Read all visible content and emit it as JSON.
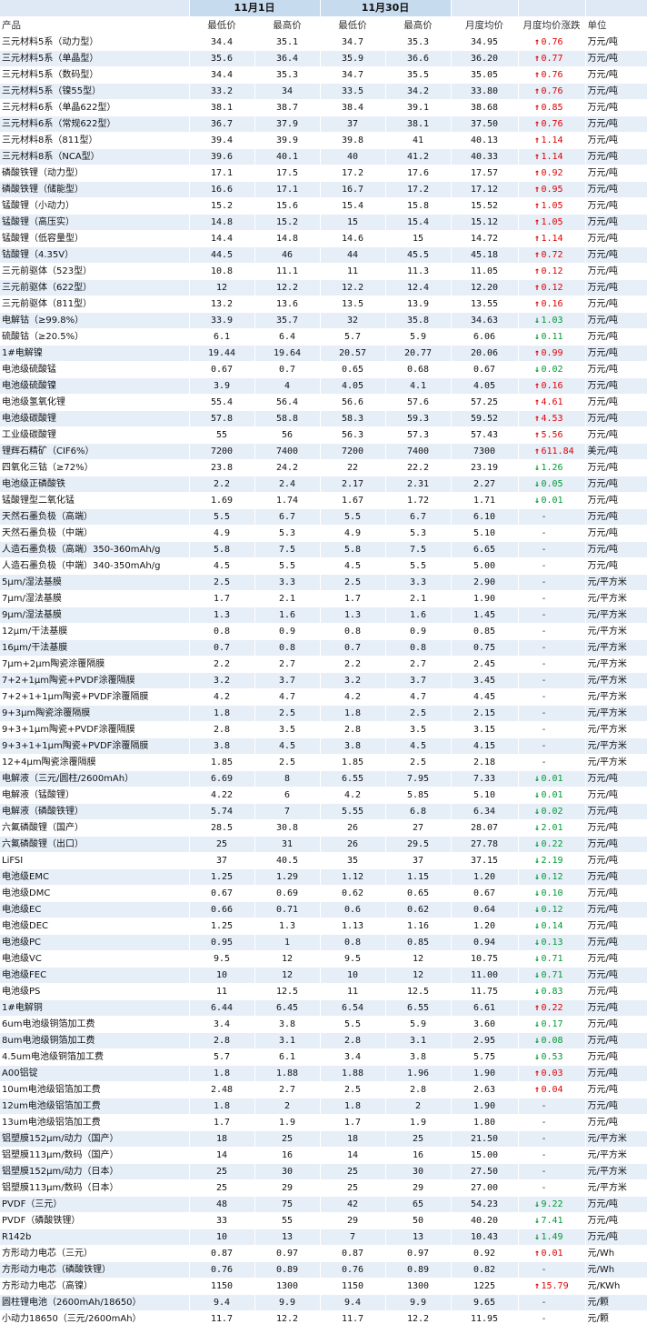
{
  "header": {
    "date1": "11月1日",
    "date2": "11月30日",
    "col_product": "产品",
    "col_low1": "最低价",
    "col_high1": "最高价",
    "col_low2": "最低价",
    "col_high2": "最高价",
    "col_avg": "月度均价",
    "col_change": "月度均价涨跌",
    "col_unit": "单位"
  },
  "colors": {
    "up": "#e00000",
    "down": "#009933",
    "band": "#e6eef8",
    "header": "#c7dbef"
  },
  "rows": [
    [
      "三元材料5系（动力型）",
      "34.4",
      "35.1",
      "34.7",
      "35.3",
      "34.95",
      "up",
      "0.76",
      "万元/吨"
    ],
    [
      "三元材料5系（单晶型）",
      "35.6",
      "36.4",
      "35.9",
      "36.6",
      "36.20",
      "up",
      "0.77",
      "万元/吨"
    ],
    [
      "三元材料5系（数码型）",
      "34.4",
      "35.3",
      "34.7",
      "35.5",
      "35.05",
      "up",
      "0.76",
      "万元/吨"
    ],
    [
      "三元材料5系（镍55型）",
      "33.2",
      "34",
      "33.5",
      "34.2",
      "33.80",
      "up",
      "0.76",
      "万元/吨"
    ],
    [
      "三元材料6系（单晶622型）",
      "38.1",
      "38.7",
      "38.4",
      "39.1",
      "38.68",
      "up",
      "0.85",
      "万元/吨"
    ],
    [
      "三元材料6系（常规622型）",
      "36.7",
      "37.9",
      "37",
      "38.1",
      "37.50",
      "up",
      "0.76",
      "万元/吨"
    ],
    [
      "三元材料8系（811型）",
      "39.4",
      "39.9",
      "39.8",
      "41",
      "40.13",
      "up",
      "1.14",
      "万元/吨"
    ],
    [
      "三元材料8系（NCA型）",
      "39.6",
      "40.1",
      "40",
      "41.2",
      "40.33",
      "up",
      "1.14",
      "万元/吨"
    ],
    [
      "磷酸铁锂（动力型）",
      "17.1",
      "17.5",
      "17.2",
      "17.6",
      "17.57",
      "up",
      "0.92",
      "万元/吨"
    ],
    [
      "磷酸铁锂（储能型）",
      "16.6",
      "17.1",
      "16.7",
      "17.2",
      "17.12",
      "up",
      "0.95",
      "万元/吨"
    ],
    [
      "锰酸锂（小动力）",
      "15.2",
      "15.6",
      "15.4",
      "15.8",
      "15.52",
      "up",
      "1.05",
      "万元/吨"
    ],
    [
      "锰酸锂（高压实）",
      "14.8",
      "15.2",
      "15",
      "15.4",
      "15.12",
      "up",
      "1.05",
      "万元/吨"
    ],
    [
      "锰酸锂（低容量型）",
      "14.4",
      "14.8",
      "14.6",
      "15",
      "14.72",
      "up",
      "1.14",
      "万元/吨"
    ],
    [
      "钴酸锂（4.35V）",
      "44.5",
      "46",
      "44",
      "45.5",
      "45.18",
      "up",
      "0.72",
      "万元/吨"
    ],
    [
      "三元前驱体（523型）",
      "10.8",
      "11.1",
      "11",
      "11.3",
      "11.05",
      "up",
      "0.12",
      "万元/吨"
    ],
    [
      "三元前驱体（622型）",
      "12",
      "12.2",
      "12.2",
      "12.4",
      "12.20",
      "up",
      "0.12",
      "万元/吨"
    ],
    [
      "三元前驱体（811型）",
      "13.2",
      "13.6",
      "13.5",
      "13.9",
      "13.55",
      "up",
      "0.16",
      "万元/吨"
    ],
    [
      "电解钴（≥99.8%）",
      "33.9",
      "35.7",
      "32",
      "35.8",
      "34.63",
      "down",
      "1.03",
      "万元/吨"
    ],
    [
      "硫酸钴（≥20.5%）",
      "6.1",
      "6.4",
      "5.7",
      "5.9",
      "6.06",
      "down",
      "0.11",
      "万元/吨"
    ],
    [
      "1#电解镍",
      "19.44",
      "19.64",
      "20.57",
      "20.77",
      "20.06",
      "up",
      "0.99",
      "万元/吨"
    ],
    [
      "电池级硫酸锰",
      "0.67",
      "0.7",
      "0.65",
      "0.68",
      "0.67",
      "down",
      "0.02",
      "万元/吨"
    ],
    [
      "电池级硫酸镍",
      "3.9",
      "4",
      "4.05",
      "4.1",
      "4.05",
      "up",
      "0.16",
      "万元/吨"
    ],
    [
      "电池级氢氧化锂",
      "55.4",
      "56.4",
      "56.6",
      "57.6",
      "57.25",
      "up",
      "4.61",
      "万元/吨"
    ],
    [
      "电池级碳酸锂",
      "57.8",
      "58.8",
      "58.3",
      "59.3",
      "59.52",
      "up",
      "4.53",
      "万元/吨"
    ],
    [
      "工业级碳酸锂",
      "55",
      "56",
      "56.3",
      "57.3",
      "57.43",
      "up",
      "5.56",
      "万元/吨"
    ],
    [
      "锂辉石精矿（CIF6%）",
      "7200",
      "7400",
      "7200",
      "7400",
      "7300",
      "up",
      "611.84",
      "美元/吨"
    ],
    [
      "四氧化三钴（≥72%）",
      "23.8",
      "24.2",
      "22",
      "22.2",
      "23.19",
      "down",
      "1.26",
      "万元/吨"
    ],
    [
      "电池级正磷酸铁",
      "2.2",
      "2.4",
      "2.17",
      "2.31",
      "2.27",
      "down",
      "0.05",
      "万元/吨"
    ],
    [
      "锰酸锂型二氧化锰",
      "1.69",
      "1.74",
      "1.67",
      "1.72",
      "1.71",
      "down",
      "0.01",
      "万元/吨"
    ],
    [
      "天然石墨负极（高端）",
      "5.5",
      "6.7",
      "5.5",
      "6.7",
      "6.10",
      "flat",
      "-",
      "万元/吨"
    ],
    [
      "天然石墨负极（中端）",
      "4.9",
      "5.3",
      "4.9",
      "5.3",
      "5.10",
      "flat",
      "-",
      "万元/吨"
    ],
    [
      "人造石墨负极（高端）350-360mAh/g",
      "5.8",
      "7.5",
      "5.8",
      "7.5",
      "6.65",
      "flat",
      "-",
      "万元/吨"
    ],
    [
      "人造石墨负极（中端）340-350mAh/g",
      "4.5",
      "5.5",
      "4.5",
      "5.5",
      "5.00",
      "flat",
      "-",
      "万元/吨"
    ],
    [
      "5μm/湿法基膜",
      "2.5",
      "3.3",
      "2.5",
      "3.3",
      "2.90",
      "flat",
      "-",
      "元/平方米"
    ],
    [
      "7μm/湿法基膜",
      "1.7",
      "2.1",
      "1.7",
      "2.1",
      "1.90",
      "flat",
      "-",
      "元/平方米"
    ],
    [
      "9μm/湿法基膜",
      "1.3",
      "1.6",
      "1.3",
      "1.6",
      "1.45",
      "flat",
      "-",
      "元/平方米"
    ],
    [
      "12μm/干法基膜",
      "0.8",
      "0.9",
      "0.8",
      "0.9",
      "0.85",
      "flat",
      "-",
      "元/平方米"
    ],
    [
      "16μm/干法基膜",
      "0.7",
      "0.8",
      "0.7",
      "0.8",
      "0.75",
      "flat",
      "-",
      "元/平方米"
    ],
    [
      "7μm+2μm陶瓷涂覆隔膜",
      "2.2",
      "2.7",
      "2.2",
      "2.7",
      "2.45",
      "flat",
      "-",
      "元/平方米"
    ],
    [
      "7+2+1μm陶瓷+PVDF涂覆隔膜",
      "3.2",
      "3.7",
      "3.2",
      "3.7",
      "3.45",
      "flat",
      "-",
      "元/平方米"
    ],
    [
      "7+2+1+1μm陶瓷+PVDF涂覆隔膜",
      "4.2",
      "4.7",
      "4.2",
      "4.7",
      "4.45",
      "flat",
      "-",
      "元/平方米"
    ],
    [
      "9+3μm陶瓷涂覆隔膜",
      "1.8",
      "2.5",
      "1.8",
      "2.5",
      "2.15",
      "flat",
      "-",
      "元/平方米"
    ],
    [
      "9+3+1μm陶瓷+PVDF涂覆隔膜",
      "2.8",
      "3.5",
      "2.8",
      "3.5",
      "3.15",
      "flat",
      "-",
      "元/平方米"
    ],
    [
      "9+3+1+1μm陶瓷+PVDF涂覆隔膜",
      "3.8",
      "4.5",
      "3.8",
      "4.5",
      "4.15",
      "flat",
      "-",
      "元/平方米"
    ],
    [
      "12+4μm陶瓷涂覆隔膜",
      "1.85",
      "2.5",
      "1.85",
      "2.5",
      "2.18",
      "flat",
      "-",
      "元/平方米"
    ],
    [
      "电解液（三元/圆柱/2600mAh）",
      "6.69",
      "8",
      "6.55",
      "7.95",
      "7.33",
      "down",
      "0.01",
      "万元/吨"
    ],
    [
      "电解液（锰酸锂）",
      "4.22",
      "6",
      "4.2",
      "5.85",
      "5.10",
      "down",
      "0.01",
      "万元/吨"
    ],
    [
      "电解液（磷酸铁锂）",
      "5.74",
      "7",
      "5.55",
      "6.8",
      "6.34",
      "down",
      "0.02",
      "万元/吨"
    ],
    [
      "六氟磷酸锂（国产）",
      "28.5",
      "30.8",
      "26",
      "27",
      "28.07",
      "down",
      "2.01",
      "万元/吨"
    ],
    [
      "六氟磷酸锂（出口）",
      "25",
      "31",
      "26",
      "29.5",
      "27.78",
      "down",
      "0.22",
      "万元/吨"
    ],
    [
      "LiFSI",
      "37",
      "40.5",
      "35",
      "37",
      "37.15",
      "down",
      "2.19",
      "万元/吨"
    ],
    [
      "电池级EMC",
      "1.25",
      "1.29",
      "1.12",
      "1.15",
      "1.20",
      "down",
      "0.12",
      "万元/吨"
    ],
    [
      "电池级DMC",
      "0.67",
      "0.69",
      "0.62",
      "0.65",
      "0.67",
      "down",
      "0.10",
      "万元/吨"
    ],
    [
      "电池级EC",
      "0.66",
      "0.71",
      "0.6",
      "0.62",
      "0.64",
      "down",
      "0.12",
      "万元/吨"
    ],
    [
      "电池级DEC",
      "1.25",
      "1.3",
      "1.13",
      "1.16",
      "1.20",
      "down",
      "0.14",
      "万元/吨"
    ],
    [
      "电池级PC",
      "0.95",
      "1",
      "0.8",
      "0.85",
      "0.94",
      "down",
      "0.13",
      "万元/吨"
    ],
    [
      "电池级VC",
      "9.5",
      "12",
      "9.5",
      "12",
      "10.75",
      "down",
      "0.71",
      "万元/吨"
    ],
    [
      "电池级FEC",
      "10",
      "12",
      "10",
      "12",
      "11.00",
      "down",
      "0.71",
      "万元/吨"
    ],
    [
      "电池级PS",
      "11",
      "12.5",
      "11",
      "12.5",
      "11.75",
      "down",
      "0.83",
      "万元/吨"
    ],
    [
      "1#电解铜",
      "6.44",
      "6.45",
      "6.54",
      "6.55",
      "6.61",
      "up",
      "0.22",
      "万元/吨"
    ],
    [
      "6um电池级铜箔加工费",
      "3.4",
      "3.8",
      "5.5",
      "5.9",
      "3.60",
      "down",
      "0.17",
      "万元/吨"
    ],
    [
      "8um电池级铜箔加工费",
      "2.8",
      "3.1",
      "2.8",
      "3.1",
      "2.95",
      "down",
      "0.08",
      "万元/吨"
    ],
    [
      "4.5um电池级铜箔加工费",
      "5.7",
      "6.1",
      "3.4",
      "3.8",
      "5.75",
      "down",
      "0.53",
      "万元/吨"
    ],
    [
      "A00铝锭",
      "1.8",
      "1.88",
      "1.88",
      "1.96",
      "1.90",
      "up",
      "0.03",
      "万元/吨"
    ],
    [
      "10um电池级铝箔加工费",
      "2.48",
      "2.7",
      "2.5",
      "2.8",
      "2.63",
      "up",
      "0.04",
      "万元/吨"
    ],
    [
      "12um电池级铝箔加工费",
      "1.8",
      "2",
      "1.8",
      "2",
      "1.90",
      "flat",
      "-",
      "万元/吨"
    ],
    [
      "13um电池级铝箔加工费",
      "1.7",
      "1.9",
      "1.7",
      "1.9",
      "1.80",
      "flat",
      "-",
      "万元/吨"
    ],
    [
      "铝塑膜152μm/动力（国产）",
      "18",
      "25",
      "18",
      "25",
      "21.50",
      "flat",
      "-",
      "元/平方米"
    ],
    [
      "铝塑膜113μm/数码（国产）",
      "14",
      "16",
      "14",
      "16",
      "15.00",
      "flat",
      "-",
      "元/平方米"
    ],
    [
      "铝塑膜152μm/动力（日本）",
      "25",
      "30",
      "25",
      "30",
      "27.50",
      "flat",
      "-",
      "元/平方米"
    ],
    [
      "铝塑膜113μm/数码（日本）",
      "25",
      "29",
      "25",
      "29",
      "27.00",
      "flat",
      "-",
      "元/平方米"
    ],
    [
      "PVDF（三元）",
      "48",
      "75",
      "42",
      "65",
      "54.23",
      "down",
      "9.22",
      "万元/吨"
    ],
    [
      "PVDF（磷酸铁锂）",
      "33",
      "55",
      "29",
      "50",
      "40.20",
      "down",
      "7.41",
      "万元/吨"
    ],
    [
      "R142b",
      "10",
      "13",
      "7",
      "13",
      "10.43",
      "down",
      "1.49",
      "万元/吨"
    ],
    [
      "方形动力电芯（三元）",
      "0.87",
      "0.97",
      "0.87",
      "0.97",
      "0.92",
      "up",
      "0.01",
      "元/Wh"
    ],
    [
      "方形动力电芯（磷酸铁锂）",
      "0.76",
      "0.89",
      "0.76",
      "0.89",
      "0.82",
      "flat",
      "-",
      "元/Wh"
    ],
    [
      "方形动力电芯（高镍）",
      "1150",
      "1300",
      "1150",
      "1300",
      "1225",
      "up",
      "15.79",
      "元/KWh"
    ],
    [
      "圆柱锂电池（2600mAh/18650）",
      "9.4",
      "9.9",
      "9.4",
      "9.9",
      "9.65",
      "flat",
      "-",
      "元/颗"
    ],
    [
      "小动力18650（三元/2600mAh）",
      "11.7",
      "12.2",
      "11.7",
      "12.2",
      "11.95",
      "flat",
      "-",
      "元/颗"
    ]
  ]
}
